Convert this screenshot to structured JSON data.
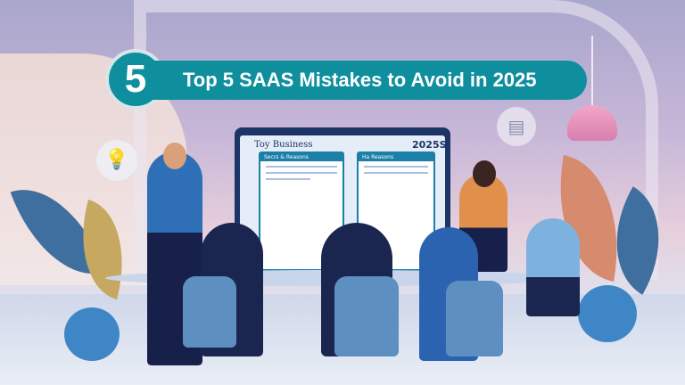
{
  "banner": {
    "number": "5",
    "title": "Top 5 SAAS Mistakes to Avoid in 2025",
    "color": "#0f8f9e"
  },
  "screen": {
    "title": "Toy Business",
    "year": "2025S",
    "panel_left": "Secrs & Reasons",
    "panel_right": "Ha Reasons"
  },
  "colors": {
    "monitor": "#1d3566",
    "accent": "#1b7fa8",
    "lamp": "#e08fb8"
  }
}
